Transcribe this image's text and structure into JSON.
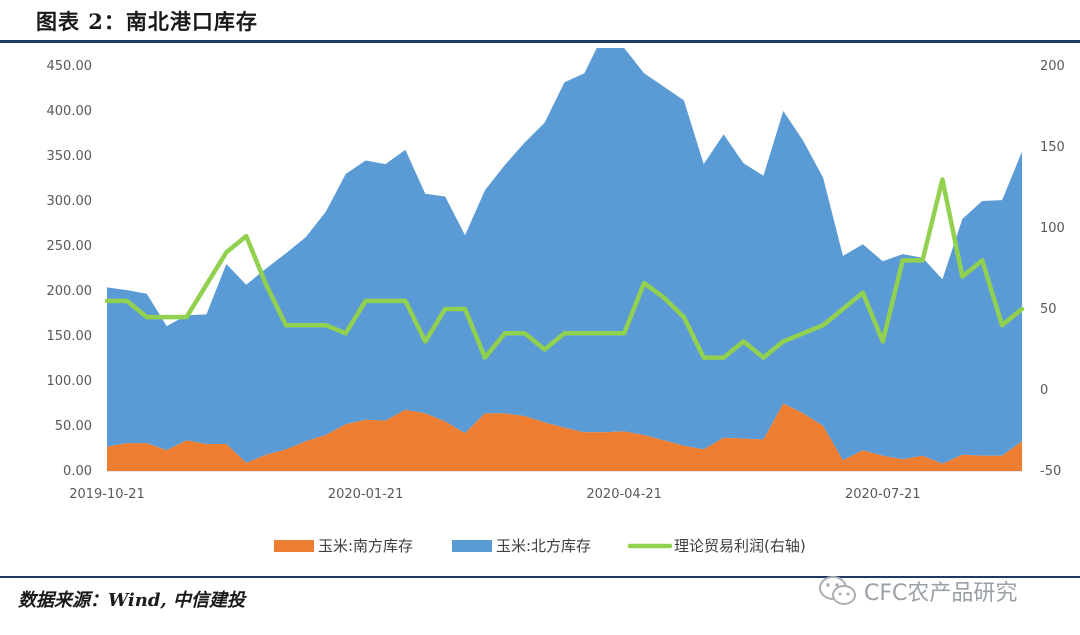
{
  "header": {
    "title": "图表 2：南北港口库存"
  },
  "footer": {
    "source": "数据来源：Wind, 中信建投",
    "watermark": "CFC农产品研究"
  },
  "colors": {
    "south": "#ED7D31",
    "north": "#5B9BD5",
    "profit": "#92D050",
    "rule": "#1f3864"
  },
  "chart_data": {
    "type": "area",
    "title": "",
    "x_labels": [
      "2019-10-21",
      "2020-01-21",
      "2020-04-21",
      "2020-07-21"
    ],
    "x_label_index": [
      0,
      13,
      26,
      39
    ],
    "y_left": {
      "min": 0,
      "max": 450,
      "step": 50,
      "decimals": 2
    },
    "y_right": {
      "min": -50,
      "max": 200,
      "step": 50,
      "ticks": [
        200,
        150,
        100,
        50,
        0,
        -50
      ]
    },
    "legend_position": "bottom",
    "series": [
      {
        "name": "玉米:南方库存",
        "type": "area",
        "axis": "left",
        "values": [
          27,
          31,
          31,
          23,
          34,
          30,
          30,
          9,
          18,
          24,
          33,
          40,
          52,
          57,
          56,
          68,
          64,
          55,
          42,
          64,
          64,
          61,
          54,
          48,
          43,
          43,
          44,
          40,
          34,
          28,
          24,
          37,
          36,
          35,
          75,
          64,
          50,
          12,
          23,
          17,
          13,
          17,
          8,
          18,
          17,
          17,
          33
        ]
      },
      {
        "name": "玉米:北方库存",
        "type": "area",
        "stacked": true,
        "axis": "left",
        "values": [
          177,
          170,
          166,
          138,
          139,
          144,
          200,
          198,
          207,
          218,
          227,
          248,
          278,
          288,
          285,
          289,
          244,
          250,
          220,
          248,
          276,
          304,
          333,
          384,
          399,
          444,
          426,
          402,
          393,
          384,
          317,
          337,
          306,
          293,
          325,
          303,
          276,
          227,
          229,
          216,
          228,
          220,
          205,
          262,
          283,
          284,
          322
        ]
      },
      {
        "name": "理论贸易利润(右轴)",
        "type": "line",
        "axis": "right",
        "values": [
          55,
          55,
          45,
          45,
          45,
          65,
          85,
          95,
          65,
          40,
          40,
          40,
          35,
          55,
          55,
          55,
          30,
          50,
          50,
          20,
          35,
          35,
          25,
          35,
          35,
          35,
          35,
          66,
          57,
          45,
          20,
          20,
          30,
          20,
          30,
          35,
          40,
          50,
          60,
          30,
          80,
          80,
          130,
          70,
          80,
          40,
          50
        ]
      }
    ]
  }
}
